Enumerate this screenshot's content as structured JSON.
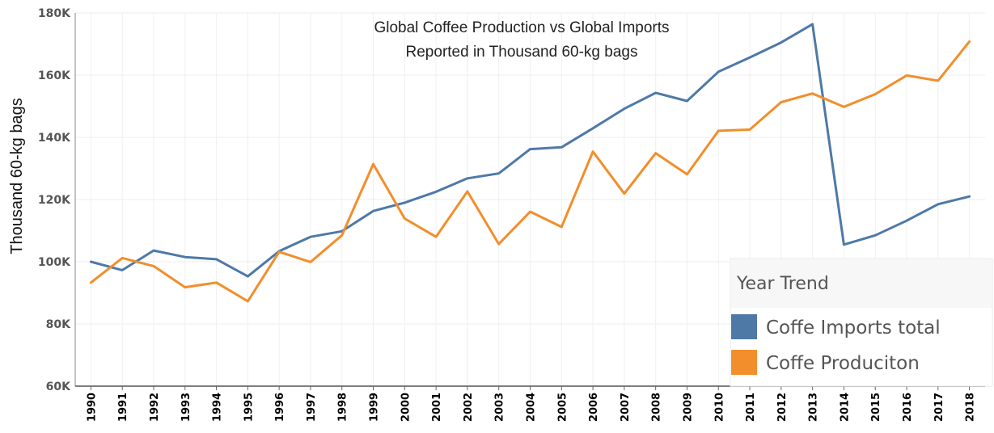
{
  "chart_data": {
    "type": "line",
    "title": "Global Coffee Production vs Global Imports",
    "subtitle": "Reported in Thousand 60-kg bags",
    "xlabel": "",
    "ylabel": "Thousand 60-kg bags",
    "ylim": [
      60000,
      180000
    ],
    "yticks": [
      60000,
      80000,
      100000,
      120000,
      140000,
      160000,
      180000
    ],
    "ytick_labels": [
      "60K",
      "80K",
      "100K",
      "120K",
      "140K",
      "160K",
      "180K"
    ],
    "grid": true,
    "legend_placement": "bottom-right",
    "legend_title": "Year Trend",
    "categories": [
      "1990",
      "1991",
      "1992",
      "1993",
      "1994",
      "1995",
      "1996",
      "1997",
      "1998",
      "1999",
      "2000",
      "2001",
      "2002",
      "2003",
      "2004",
      "2005",
      "2006",
      "2007",
      "2008",
      "2009",
      "2010",
      "2011",
      "2012",
      "2013",
      "2014",
      "2015",
      "2016",
      "2017",
      "2018"
    ],
    "series": [
      {
        "name": "Coffe Imports total",
        "color": "#4e79a7",
        "values": [
          100000,
          97300,
          103600,
          101500,
          100800,
          95300,
          103400,
          108000,
          109800,
          116300,
          119000,
          122500,
          126800,
          128400,
          136200,
          136800,
          142900,
          149200,
          154300,
          151700,
          161100,
          165700,
          170500,
          176400,
          105500,
          108500,
          113200,
          118500,
          121000
        ]
      },
      {
        "name": "Coffe Produciton",
        "color": "#f28e2b",
        "values": [
          93300,
          101200,
          98600,
          91800,
          93300,
          87300,
          103200,
          99900,
          108500,
          131400,
          113900,
          108000,
          122600,
          105700,
          116100,
          111200,
          135400,
          121900,
          134900,
          128100,
          142100,
          142500,
          151300,
          154100,
          149800,
          153900,
          159900,
          158200,
          170800
        ]
      }
    ]
  }
}
